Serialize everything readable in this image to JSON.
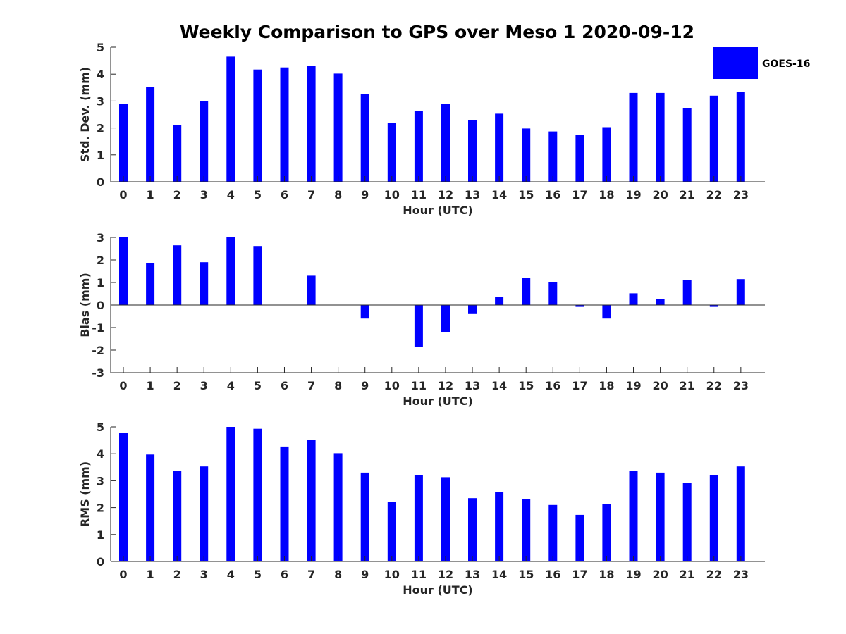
{
  "title": "Weekly Comparison to GPS over Meso 1 2020-09-12",
  "legend": {
    "label": "GOES-16",
    "color": "#0000ff",
    "position": "top-right"
  },
  "chart_data": [
    {
      "type": "bar",
      "name": "std",
      "xlabel": "Hour (UTC)",
      "ylabel": "Std. Dev. (mm)",
      "ylim": [
        0,
        5
      ],
      "yticks": [
        0,
        1,
        2,
        3,
        4,
        5
      ],
      "categories": [
        "0",
        "1",
        "2",
        "3",
        "4",
        "5",
        "6",
        "7",
        "8",
        "9",
        "10",
        "11",
        "12",
        "13",
        "14",
        "15",
        "16",
        "17",
        "18",
        "19",
        "20",
        "21",
        "22",
        "23"
      ],
      "series": [
        {
          "name": "GOES-16",
          "color": "#0000ff",
          "values": [
            2.9,
            3.52,
            2.1,
            3.0,
            4.65,
            4.17,
            4.25,
            4.32,
            4.02,
            3.25,
            2.2,
            2.63,
            2.88,
            2.3,
            2.53,
            1.98,
            1.87,
            1.73,
            2.03,
            3.3,
            3.3,
            2.73,
            3.2,
            3.33
          ]
        }
      ]
    },
    {
      "type": "bar",
      "name": "bias",
      "xlabel": "Hour (UTC)",
      "ylabel": "Bias (mm)",
      "ylim": [
        -3,
        3
      ],
      "yticks": [
        -3,
        -2,
        -1,
        0,
        1,
        2,
        3
      ],
      "baseline": 0,
      "categories": [
        "0",
        "1",
        "2",
        "3",
        "4",
        "5",
        "6",
        "7",
        "8",
        "9",
        "10",
        "11",
        "12",
        "13",
        "14",
        "15",
        "16",
        "17",
        "18",
        "19",
        "20",
        "21",
        "22",
        "23"
      ],
      "series": [
        {
          "name": "GOES-16",
          "color": "#0000ff",
          "values": [
            3.0,
            1.85,
            2.65,
            1.9,
            3.0,
            2.62,
            0.0,
            1.3,
            0.0,
            -0.6,
            0.0,
            -1.85,
            -1.2,
            -0.4,
            0.37,
            1.22,
            1.0,
            -0.08,
            -0.6,
            0.52,
            0.25,
            1.12,
            -0.08,
            1.15
          ]
        }
      ]
    },
    {
      "type": "bar",
      "name": "rms",
      "xlabel": "Hour (UTC)",
      "ylabel": "RMS (mm)",
      "ylim": [
        0,
        5
      ],
      "yticks": [
        0,
        1,
        2,
        3,
        4,
        5
      ],
      "categories": [
        "0",
        "1",
        "2",
        "3",
        "4",
        "5",
        "6",
        "7",
        "8",
        "9",
        "10",
        "11",
        "12",
        "13",
        "14",
        "15",
        "16",
        "17",
        "18",
        "19",
        "20",
        "21",
        "22",
        "23"
      ],
      "series": [
        {
          "name": "GOES-16",
          "color": "#0000ff",
          "values": [
            4.77,
            3.97,
            3.37,
            3.53,
            5.0,
            4.93,
            4.27,
            4.52,
            4.02,
            3.3,
            2.2,
            3.22,
            3.13,
            2.35,
            2.57,
            2.33,
            2.1,
            1.73,
            2.12,
            3.35,
            3.3,
            2.92,
            3.22,
            3.53
          ]
        }
      ]
    }
  ]
}
